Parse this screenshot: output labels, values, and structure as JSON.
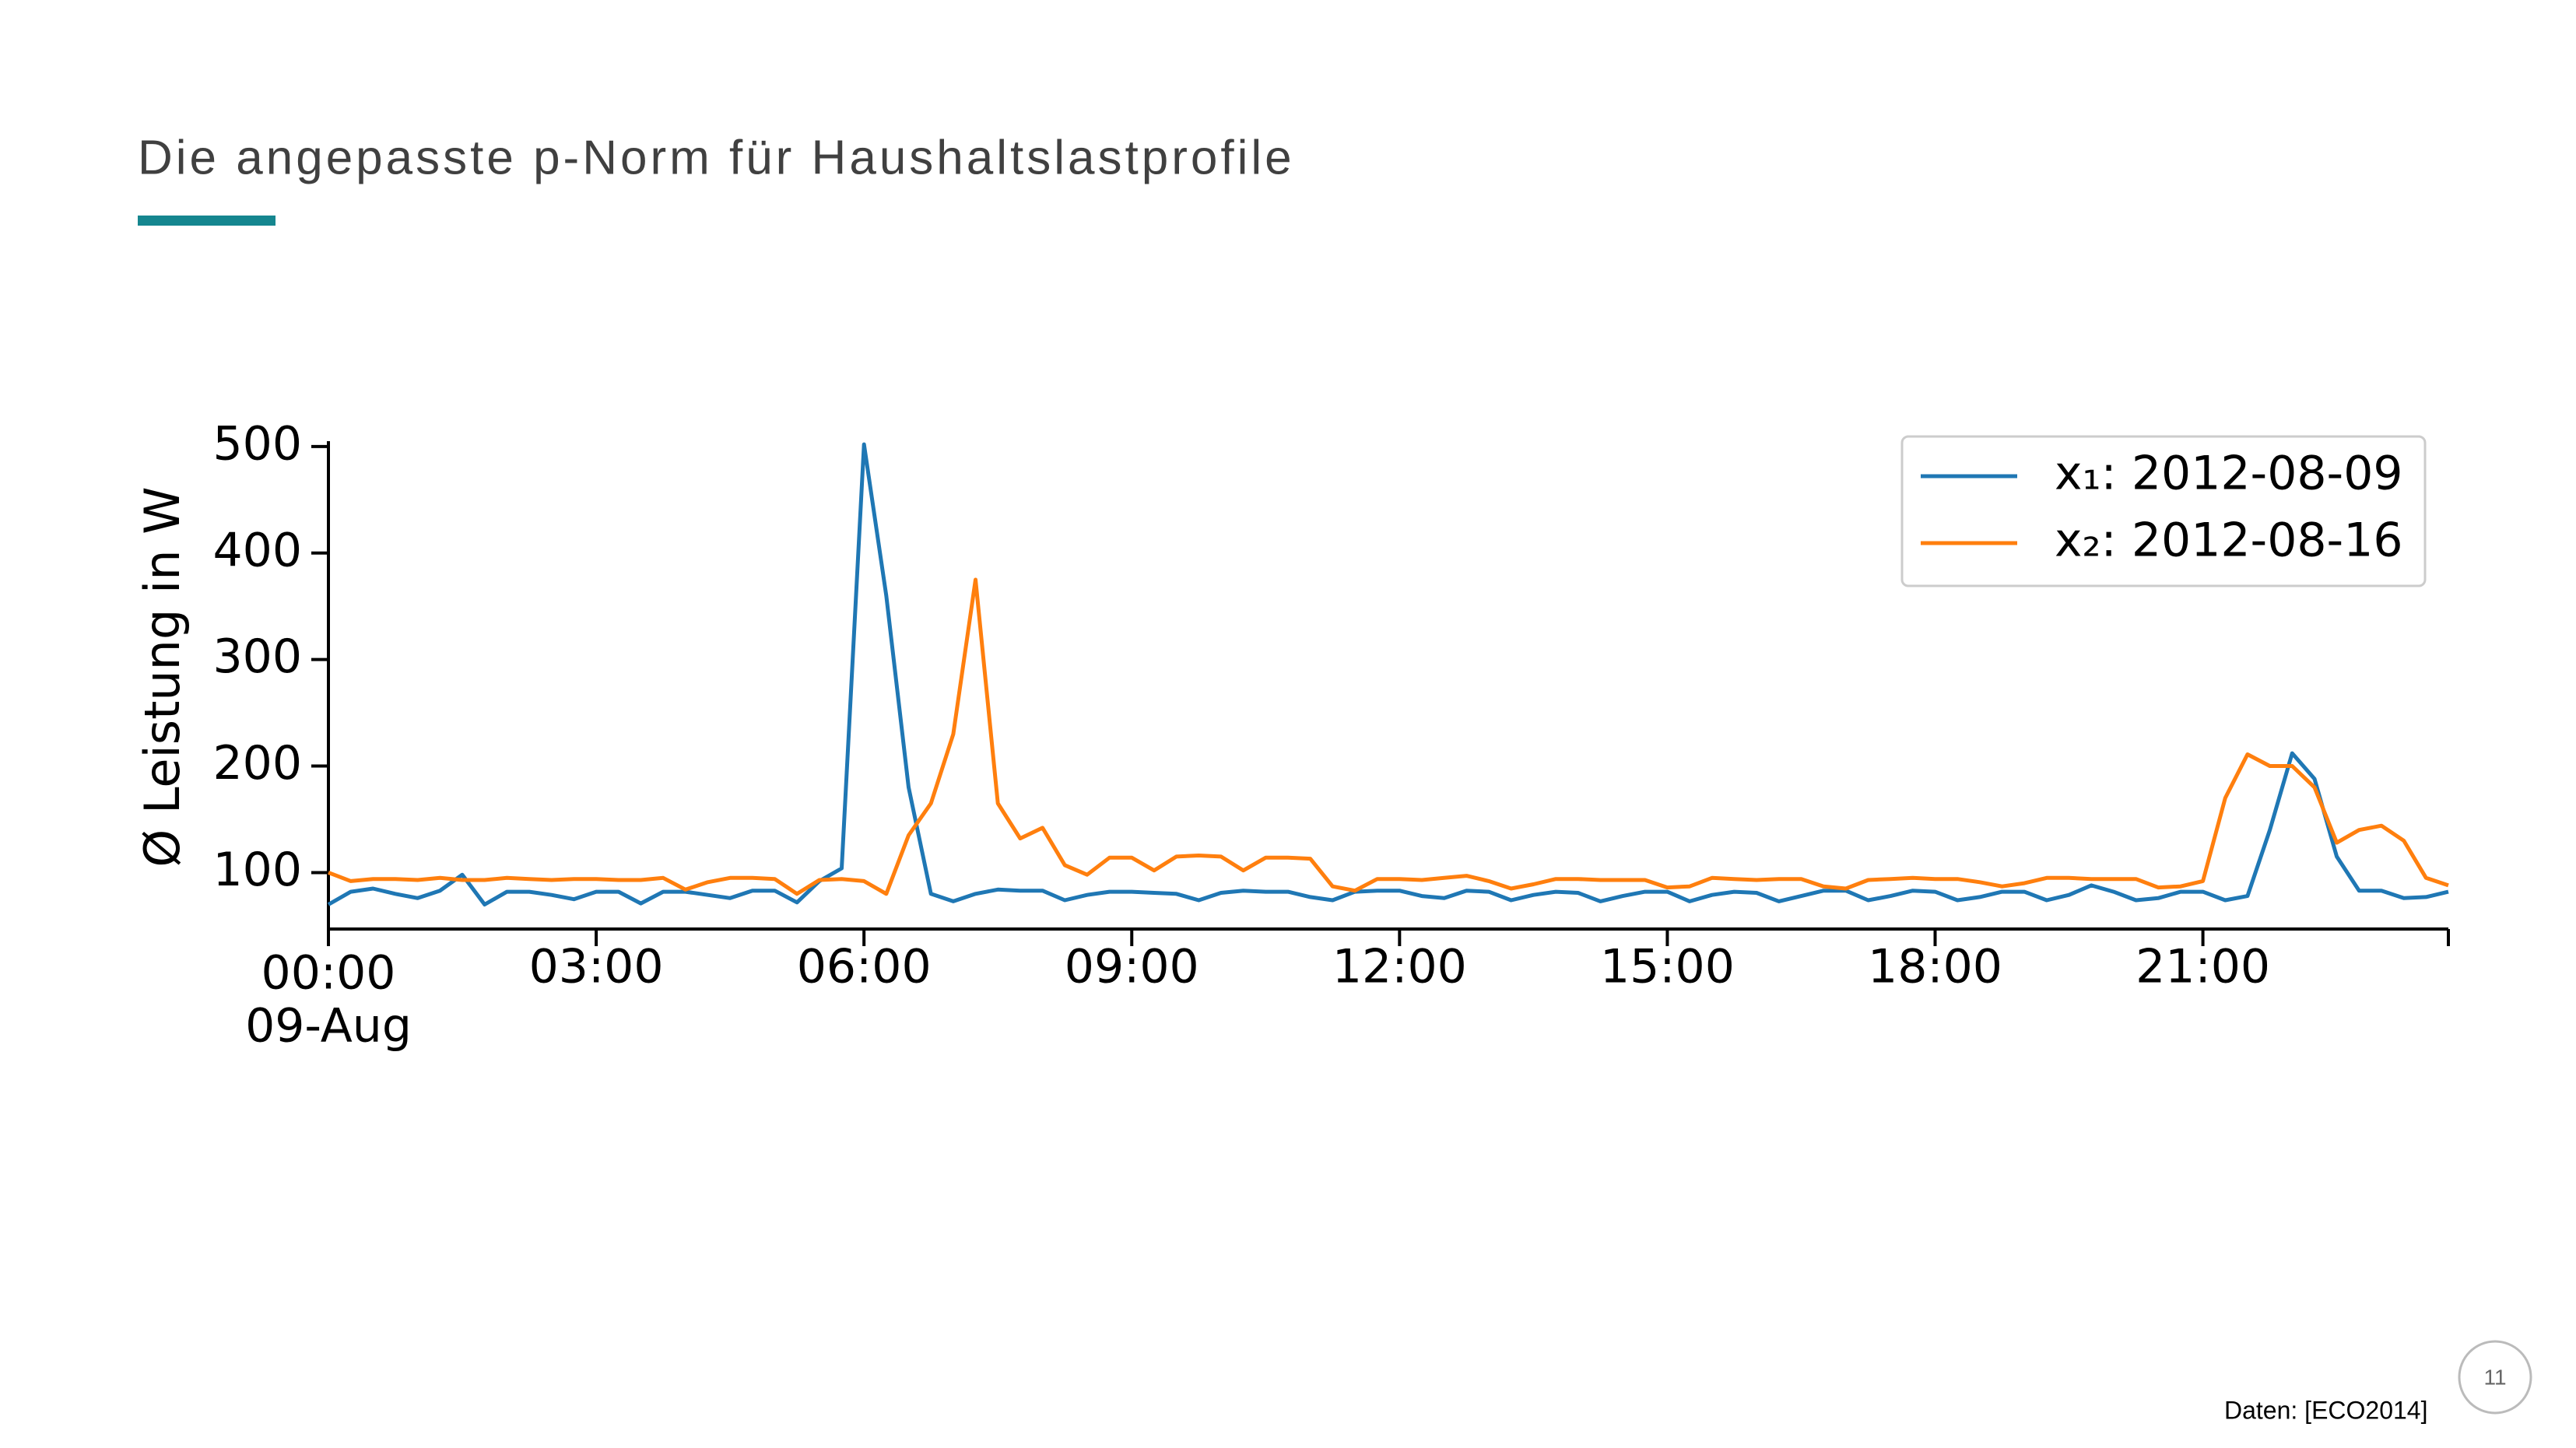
{
  "chart_data": {
    "type": "line",
    "title": "Die angepasste p-Norm für Haushaltslastprofile",
    "ylabel": "Ø Leistung in W",
    "x_date_label": "09-Aug",
    "x": [
      0,
      0.25,
      0.5,
      0.75,
      1,
      1.25,
      1.5,
      1.75,
      2,
      2.25,
      2.5,
      2.75,
      3,
      3.25,
      3.5,
      3.75,
      4,
      4.25,
      4.5,
      4.75,
      5,
      5.25,
      5.5,
      5.75,
      6,
      6.25,
      6.5,
      6.75,
      7,
      7.25,
      7.5,
      7.75,
      8,
      8.25,
      8.5,
      8.75,
      9,
      9.25,
      9.5,
      9.75,
      10,
      10.25,
      10.5,
      10.75,
      11,
      11.25,
      11.5,
      11.75,
      12,
      12.25,
      12.5,
      12.75,
      13,
      13.25,
      13.5,
      13.75,
      14,
      14.25,
      14.5,
      14.75,
      15,
      15.25,
      15.5,
      15.75,
      16,
      16.25,
      16.5,
      16.75,
      17,
      17.25,
      17.5,
      17.75,
      18,
      18.25,
      18.5,
      18.75,
      19,
      19.25,
      19.5,
      19.75,
      20,
      20.25,
      20.5,
      20.75,
      21,
      21.25,
      21.5,
      21.75,
      22,
      22.25,
      22.5,
      22.75,
      23,
      23.25,
      23.5,
      23.75
    ],
    "series": [
      {
        "name": "x₁: 2012-08-09",
        "color": "#1f77b4",
        "values": [
          70,
          82,
          85,
          80,
          76,
          83,
          98,
          70,
          82,
          82,
          79,
          75,
          82,
          82,
          71,
          82,
          82,
          79,
          76,
          83,
          83,
          72,
          92,
          104,
          502,
          360,
          180,
          80,
          73,
          80,
          84,
          83,
          83,
          74,
          79,
          82,
          82,
          81,
          80,
          74,
          81,
          83,
          82,
          82,
          77,
          74,
          82,
          83,
          83,
          78,
          76,
          83,
          82,
          74,
          79,
          82,
          81,
          73,
          78,
          82,
          82,
          73,
          79,
          82,
          81,
          73,
          78,
          83,
          83,
          74,
          78,
          83,
          82,
          74,
          77,
          82,
          82,
          74,
          79,
          88,
          82,
          74,
          76,
          82,
          82,
          74,
          78,
          140,
          212,
          188,
          115,
          83,
          83,
          76,
          77,
          82
        ]
      },
      {
        "name": "x₂: 2012-08-16",
        "color": "#ff7f0e",
        "values": [
          100,
          92,
          94,
          94,
          93,
          95,
          93,
          93,
          95,
          94,
          93,
          94,
          94,
          93,
          93,
          95,
          84,
          91,
          95,
          95,
          94,
          80,
          93,
          94,
          92,
          80,
          135,
          165,
          230,
          375,
          165,
          132,
          142,
          107,
          98,
          114,
          114,
          102,
          115,
          116,
          115,
          102,
          114,
          114,
          113,
          87,
          83,
          94,
          94,
          93,
          95,
          97,
          92,
          85,
          89,
          94,
          94,
          93,
          93,
          93,
          86,
          87,
          95,
          94,
          93,
          94,
          94,
          87,
          85,
          93,
          94,
          95,
          94,
          94,
          91,
          87,
          90,
          95,
          95,
          94,
          94,
          94,
          86,
          87,
          92,
          170,
          211,
          200,
          200,
          180,
          128,
          140,
          144,
          130,
          95,
          88
        ]
      }
    ],
    "xlim": [
      0,
      23.75
    ],
    "xticks": [
      {
        "value": 0,
        "label": "00:00"
      },
      {
        "value": 3,
        "label": "03:00"
      },
      {
        "value": 6,
        "label": "06:00"
      },
      {
        "value": 9,
        "label": "09:00"
      },
      {
        "value": 12,
        "label": "12:00"
      },
      {
        "value": 15,
        "label": "15:00"
      },
      {
        "value": 18,
        "label": "18:00"
      },
      {
        "value": 21,
        "label": "21:00"
      }
    ],
    "ylim": [
      47,
      505
    ],
    "yticks": [
      100,
      200,
      300,
      400,
      500
    ],
    "legend": "upper right"
  },
  "footer": {
    "source": "Daten: [ECO2014]",
    "page_number": 11
  }
}
